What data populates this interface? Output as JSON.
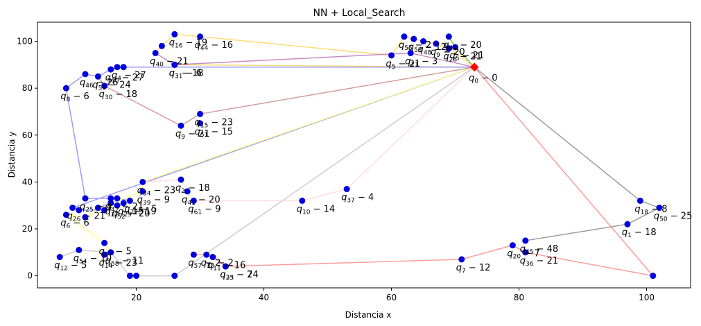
{
  "chart_data": {
    "type": "scatter",
    "title": "NN + Local_Search",
    "xlabel": "Distancia x",
    "ylabel": "Distancia y",
    "xlim": [
      4.5,
      106.9
    ],
    "ylim": [
      -5.15,
      108.15
    ],
    "xticks": [
      20,
      40,
      60,
      80,
      100
    ],
    "yticks": [
      0,
      20,
      40,
      60,
      80,
      100
    ],
    "grid": false,
    "depot": {
      "x": 73,
      "y": 89,
      "label": "q_0 - 0",
      "color": "#ff0000"
    },
    "point_color": "#0000dd",
    "points": [
      {
        "x": 26,
        "y": 103,
        "label": "q_16 - 19"
      },
      {
        "x": 30,
        "y": 102,
        "label": "q_44 - 16"
      },
      {
        "x": 24,
        "y": 98,
        "label": ""
      },
      {
        "x": 23,
        "y": 95,
        "label": "q_40 - 21"
      },
      {
        "x": 26,
        "y": 90,
        "label": "q_3 - 18"
      },
      {
        "x": 26,
        "y": 90,
        "label": "q_31 - 6"
      },
      {
        "x": 62,
        "y": 102,
        "label": "q_55 - 2"
      },
      {
        "x": 63.5,
        "y": 101,
        "label": "q_53 - 12"
      },
      {
        "x": 65,
        "y": 100,
        "label": "q_48 - 2"
      },
      {
        "x": 67,
        "y": 99,
        "label": "q_9 - 20"
      },
      {
        "x": 69,
        "y": 102,
        "label": "q_49 - 20"
      },
      {
        "x": 69,
        "y": 97,
        "label": "q_28 - 21"
      },
      {
        "x": 70,
        "y": 97.5,
        "label": "q_5 - 21"
      },
      {
        "x": 60,
        "y": 94,
        "label": "q_5 - 21"
      },
      {
        "x": 63,
        "y": 95,
        "label": "q_21 - 3"
      },
      {
        "x": 12,
        "y": 86,
        "label": "q_46 - 26"
      },
      {
        "x": 14,
        "y": 85,
        "label": "q_59 - 24"
      },
      {
        "x": 16,
        "y": 88,
        "label": "q_60 - 27"
      },
      {
        "x": 17,
        "y": 89,
        "label": "q_4 - 27"
      },
      {
        "x": 18,
        "y": 89,
        "label": ""
      },
      {
        "x": 15,
        "y": 81,
        "label": "q_30 - 18"
      },
      {
        "x": 9,
        "y": 80,
        "label": "q_8 - 6"
      },
      {
        "x": 30,
        "y": 69,
        "label": "q_15 - 23"
      },
      {
        "x": 30,
        "y": 65,
        "label": "q_51 - 15"
      },
      {
        "x": 27,
        "y": 64,
        "label": "q_9 - 21"
      },
      {
        "x": 27,
        "y": 41,
        "label": "q_2 - 18"
      },
      {
        "x": 21,
        "y": 40,
        "label": "q_34 - 23"
      },
      {
        "x": 21,
        "y": 36,
        "label": "q_39 - 9"
      },
      {
        "x": 28,
        "y": 36,
        "label": "q_41 - 20"
      },
      {
        "x": 29,
        "y": 32,
        "label": "q_61 - 9"
      },
      {
        "x": 46,
        "y": 32,
        "label": "q_10 - 14"
      },
      {
        "x": 53,
        "y": 37,
        "label": "q_37 - 4"
      },
      {
        "x": 12,
        "y": 33,
        "label": "q_25 - 4"
      },
      {
        "x": 16,
        "y": 33,
        "label": "q_42 - 21"
      },
      {
        "x": 17,
        "y": 33,
        "label": ""
      },
      {
        "x": 19,
        "y": 32,
        "label": "q_27 - 5"
      },
      {
        "x": 16,
        "y": 31,
        "label": "q_22 - 15"
      },
      {
        "x": 17,
        "y": 30,
        "label": "q_52 - 20"
      },
      {
        "x": 18,
        "y": 31,
        "label": "q_29 - 19"
      },
      {
        "x": 10,
        "y": 29,
        "label": "q_26 - 21"
      },
      {
        "x": 11,
        "y": 28,
        "label": ""
      },
      {
        "x": 14,
        "y": 29,
        "label": ""
      },
      {
        "x": 15,
        "y": 28,
        "label": ""
      },
      {
        "x": 9,
        "y": 26,
        "label": "q_6 - 6"
      },
      {
        "x": 12,
        "y": 25,
        "label": ""
      },
      {
        "x": 15,
        "y": 14,
        "label": "q_47 - 5"
      },
      {
        "x": 16,
        "y": 10,
        "label": "q_58 - 11"
      },
      {
        "x": 15,
        "y": 9,
        "label": "q_14 - 23"
      },
      {
        "x": 11,
        "y": 11,
        "label": "q_54 - 10"
      },
      {
        "x": 8,
        "y": 8,
        "label": "q_12 - 5"
      },
      {
        "x": 19,
        "y": 0,
        "label": ""
      },
      {
        "x": 20,
        "y": 0,
        "label": ""
      },
      {
        "x": 26,
        "y": 0,
        "label": ""
      },
      {
        "x": 29,
        "y": 9,
        "label": "q_57 - 2"
      },
      {
        "x": 31,
        "y": 9,
        "label": "q_33 - 2"
      },
      {
        "x": 32,
        "y": 8,
        "label": "q_11 - 16"
      },
      {
        "x": 34,
        "y": 4,
        "label": "q_35 - 24"
      },
      {
        "x": 34,
        "y": 4,
        "label": "q_23 - 7"
      },
      {
        "x": 71,
        "y": 7,
        "label": "q_7 - 12"
      },
      {
        "x": 79,
        "y": 13,
        "label": "q_20 - 7"
      },
      {
        "x": 81,
        "y": 15,
        "label": "q_45 - 48"
      },
      {
        "x": 81,
        "y": 10,
        "label": "q_36 - 21"
      },
      {
        "x": 97,
        "y": 22,
        "label": "q_1 - 18"
      },
      {
        "x": 99,
        "y": 32,
        "label": "q_18 - 8"
      },
      {
        "x": 102,
        "y": 29,
        "label": "q_50 - 25"
      },
      {
        "x": 101,
        "y": 0,
        "label": ""
      }
    ],
    "routes": [
      {
        "color": "#ffd866",
        "points": [
          [
            73,
            89
          ],
          [
            69,
            97
          ],
          [
            67,
            99
          ],
          [
            65,
            100
          ],
          [
            63.5,
            101
          ],
          [
            62,
            102
          ],
          [
            60,
            94
          ],
          [
            30,
            102
          ],
          [
            26,
            103
          ],
          [
            24,
            98
          ],
          [
            23,
            95
          ],
          [
            26,
            90
          ],
          [
            73,
            89
          ]
        ]
      },
      {
        "color": "#c080c0",
        "points": [
          [
            73,
            89
          ],
          [
            63,
            95
          ],
          [
            26,
            90
          ],
          [
            23,
            95
          ]
        ]
      },
      {
        "color": "#80c040",
        "points": [
          [
            73,
            89
          ],
          [
            70,
            97.5
          ],
          [
            69,
            102
          ]
        ]
      },
      {
        "color": "#9090ff",
        "points": [
          [
            73,
            89
          ],
          [
            17,
            89
          ],
          [
            18,
            89
          ],
          [
            16,
            88
          ],
          [
            14,
            85
          ],
          [
            12,
            86
          ],
          [
            9,
            80
          ],
          [
            12,
            33
          ],
          [
            16,
            33
          ],
          [
            17,
            33
          ],
          [
            19,
            32
          ],
          [
            18,
            31
          ],
          [
            17,
            30
          ],
          [
            16,
            31
          ],
          [
            14,
            29
          ],
          [
            15,
            28
          ],
          [
            11,
            28
          ],
          [
            10,
            29
          ],
          [
            73,
            89
          ]
        ]
      },
      {
        "color": "#d09090",
        "points": [
          [
            73,
            89
          ],
          [
            30,
            69
          ],
          [
            27,
            64
          ],
          [
            15,
            81
          ],
          [
            14,
            85
          ]
        ]
      },
      {
        "color": "#ffff80",
        "points": [
          [
            73,
            89
          ],
          [
            21,
            40
          ],
          [
            21,
            36
          ],
          [
            16,
            31
          ],
          [
            12,
            25
          ],
          [
            9,
            26
          ],
          [
            15,
            14
          ],
          [
            16,
            10
          ],
          [
            15,
            9
          ]
        ]
      },
      {
        "color": "#c8c8c8",
        "points": [
          [
            73,
            89
          ],
          [
            26,
            0
          ],
          [
            20,
            0
          ],
          [
            19,
            0
          ],
          [
            16,
            10
          ],
          [
            11,
            11
          ],
          [
            8,
            8
          ]
        ]
      },
      {
        "color": "#ffd8e0",
        "points": [
          [
            73,
            89
          ],
          [
            53,
            37
          ],
          [
            46,
            32
          ],
          [
            29,
            32
          ],
          [
            28,
            36
          ],
          [
            27,
            41
          ],
          [
            21,
            40
          ]
        ]
      },
      {
        "color": "#ff9090",
        "points": [
          [
            73,
            89
          ],
          [
            101,
            0
          ],
          [
            81,
            10
          ],
          [
            79,
            13
          ],
          [
            71,
            7
          ],
          [
            34,
            4
          ],
          [
            32,
            8
          ],
          [
            31,
            9
          ],
          [
            29,
            9
          ]
        ]
      },
      {
        "color": "#909090",
        "points": [
          [
            73,
            89
          ],
          [
            99,
            32
          ],
          [
            102,
            29
          ],
          [
            97,
            22
          ],
          [
            81,
            15
          ]
        ]
      }
    ]
  }
}
